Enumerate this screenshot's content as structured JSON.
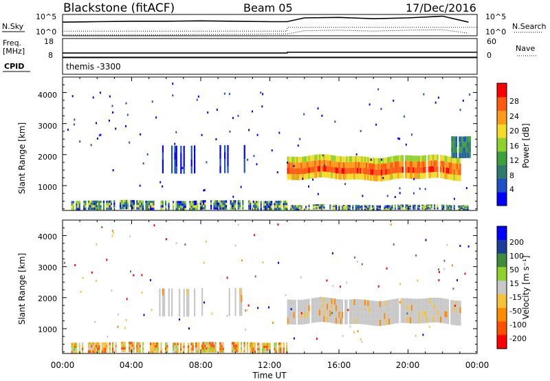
{
  "header": {
    "station": "Blackstone (fitACF)",
    "beam": "Beam 05",
    "date": "17/Dec/2016"
  },
  "chart_data": [
    {
      "panel": "noise",
      "type": "line",
      "left_label": "N.Sky",
      "right_label": "N.Search",
      "left_ticks": [
        "10^5",
        "10^0"
      ],
      "right_ticks": [
        "10^5",
        "10^0"
      ],
      "x_hours": [
        0,
        2,
        4,
        6,
        8,
        10,
        12,
        13,
        14,
        16,
        18,
        20,
        22,
        23.5
      ],
      "series": [
        {
          "name": "N.Sky",
          "style": "solid",
          "values": [
            3.2,
            3.3,
            3.4,
            3.4,
            3.5,
            3.4,
            3.3,
            3.3,
            4.2,
            4.3,
            4.0,
            4.2,
            4.6,
            3.2
          ]
        },
        {
          "name": "N.Search",
          "style": "dotted",
          "values": [
            0.2,
            0.2,
            0.2,
            0.2,
            0.3,
            0.3,
            0.4,
            0.4,
            1.2,
            1.3,
            1.1,
            1.3,
            1.4,
            0.6
          ]
        }
      ],
      "ylim": [
        0,
        5
      ]
    },
    {
      "panel": "frequency",
      "type": "line",
      "left_label_lines": [
        "Freq.",
        "[MHz]"
      ],
      "right_label": "Nave",
      "left_ticks": [
        "18",
        "8"
      ],
      "right_ticks": [
        "60",
        "0"
      ],
      "x_hours": [
        0,
        13,
        13.01,
        24
      ],
      "series": [
        {
          "name": "Freq.",
          "style": "solid",
          "values": [
            10.2,
            10.2,
            10.6,
            10.6
          ]
        },
        {
          "name": "Nave",
          "style": "dotted",
          "values": [
            22,
            22,
            24,
            24
          ]
        }
      ],
      "ylim": [
        8,
        18
      ]
    },
    {
      "panel": "cpid",
      "type": "table",
      "label": "CPID",
      "text": "themis -3300"
    },
    {
      "panel": "power",
      "type": "heatmap",
      "ylabel": "Slant Range [km]",
      "y_ticks": [
        "1000",
        "2000",
        "3000",
        "4000"
      ],
      "ylim": [
        200,
        4500
      ],
      "xlim_hours": [
        0,
        24
      ],
      "colorbar": {
        "label": "Power [dB]",
        "ticks": [
          "4",
          "8",
          "12",
          "16",
          "20",
          "24",
          "28"
        ],
        "colors": [
          "#0000ff",
          "#1e50c8",
          "#2f7a6c",
          "#3ca03c",
          "#8fd22e",
          "#f5dc28",
          "#ff9a1a",
          "#ff5a10",
          "#ff0000"
        ]
      },
      "regions": [
        {
          "desc": "near-range band",
          "x": [
            0.5,
            13.0
          ],
          "y": [
            220,
            520
          ],
          "level": 9
        },
        {
          "desc": "near-range band late",
          "x": [
            13.0,
            23.5
          ],
          "y": [
            220,
            380
          ],
          "level": 7
        },
        {
          "desc": "scattered echoes",
          "x": [
            5.5,
            10.5
          ],
          "y": [
            1400,
            2300
          ],
          "level": 3
        },
        {
          "desc": "main echo band",
          "x": [
            13.0,
            23.0
          ],
          "y": [
            1200,
            1950
          ],
          "level": 16
        },
        {
          "desc": "late rise",
          "x": [
            22.5,
            23.6
          ],
          "y": [
            1900,
            2600
          ],
          "level": 10
        }
      ]
    },
    {
      "panel": "velocity",
      "type": "heatmap",
      "ylabel": "Slant Range [km]",
      "y_ticks": [
        "1000",
        "2000",
        "3000",
        "4000"
      ],
      "ylim": [
        200,
        4500
      ],
      "x_ticks": [
        "00:00",
        "04:00",
        "08:00",
        "12:00",
        "16:00",
        "20:00",
        "00:00"
      ],
      "xlabel": "Time UT",
      "colorbar": {
        "label": "Velocity [m s⁻¹]",
        "ticks": [
          "200",
          "100",
          "50",
          "15",
          "-15",
          "-50",
          "-100",
          "-200"
        ],
        "colors": [
          "#0000ff",
          "#1e3c9a",
          "#3c8c3c",
          "#8fd22e",
          "#c8c8c8",
          "#f5c23a",
          "#ff8c00",
          "#ff5000",
          "#ff0000"
        ]
      },
      "regions": [
        {
          "desc": "near-range band",
          "x": [
            0.5,
            13.0
          ],
          "y": [
            220,
            560
          ],
          "level": "mixed-orange-green"
        },
        {
          "desc": "main echo band",
          "x": [
            13.0,
            23.0
          ],
          "y": [
            1150,
            1950
          ],
          "level": 0
        },
        {
          "desc": "scattered echoes",
          "x": [
            5.5,
            10.5
          ],
          "y": [
            1400,
            2300
          ],
          "level": 0
        }
      ]
    }
  ]
}
